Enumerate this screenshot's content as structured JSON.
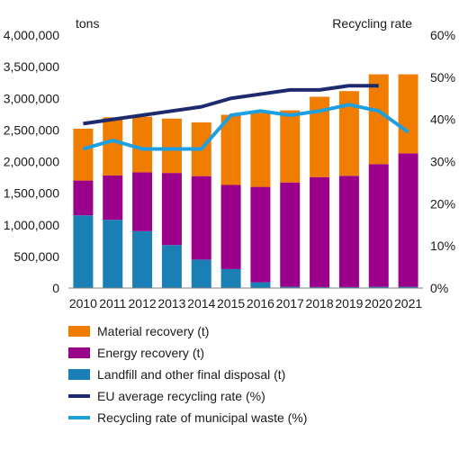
{
  "chart_data": {
    "type": "bar",
    "stacked": true,
    "y_left_label": "tons",
    "y_right_label": "Recycling rate",
    "ylim_left": [
      0,
      4000000
    ],
    "yticks_left": [
      "0",
      "500,000",
      "1,000,000",
      "1,500,000",
      "2,000,000",
      "2,500,000",
      "3,000,000",
      "3,500,000",
      "4,000,000"
    ],
    "ylim_right": [
      0,
      60
    ],
    "yticks_right": [
      "0%",
      "10%",
      "20%",
      "30%",
      "40%",
      "50%",
      "60%"
    ],
    "categories": [
      "2010",
      "2011",
      "2012",
      "2013",
      "2014",
      "2015",
      "2016",
      "2017",
      "2018",
      "2019",
      "2020",
      "2021"
    ],
    "bar_series": [
      {
        "name": "Landfill and other final disposal (t)",
        "color": "#1a7fb5",
        "values": [
          1150000,
          1080000,
          900000,
          680000,
          450000,
          300000,
          90000,
          20000,
          15000,
          15000,
          20000,
          20000
        ]
      },
      {
        "name": "Energy recovery (t)",
        "color": "#9b008a",
        "values": [
          550000,
          700000,
          930000,
          1140000,
          1320000,
          1330000,
          1510000,
          1650000,
          1740000,
          1760000,
          1940000,
          2110000
        ]
      },
      {
        "name": "Material recovery (t)",
        "color": "#f07d00",
        "values": [
          820000,
          920000,
          880000,
          860000,
          850000,
          1110000,
          1170000,
          1140000,
          1270000,
          1340000,
          1420000,
          1250000
        ]
      }
    ],
    "line_series": [
      {
        "name": "EU average recycling rate (%)",
        "color": "#1e2a6e",
        "values": [
          39,
          40,
          41,
          42,
          43,
          45,
          46,
          47,
          47,
          48,
          48,
          null
        ]
      },
      {
        "name": "Recycling rate of municipal waste (%)",
        "color": "#1e9fe0",
        "values": [
          33,
          35,
          33,
          33,
          33,
          41,
          42,
          41,
          42,
          43.5,
          42,
          37
        ]
      }
    ],
    "legend_order": [
      {
        "name": "Material recovery (t)",
        "kind": "box",
        "color": "#f07d00"
      },
      {
        "name": "Energy recovery (t)",
        "kind": "box",
        "color": "#9b008a"
      },
      {
        "name": "Landfill and other final disposal (t)",
        "kind": "box",
        "color": "#1a7fb5"
      },
      {
        "name": "EU average recycling rate (%)",
        "kind": "line",
        "color": "#1e2a6e"
      },
      {
        "name": "Recycling rate of municipal waste (%)",
        "kind": "line",
        "color": "#1e9fe0"
      }
    ],
    "grid": false,
    "legend_position": "bottom"
  }
}
